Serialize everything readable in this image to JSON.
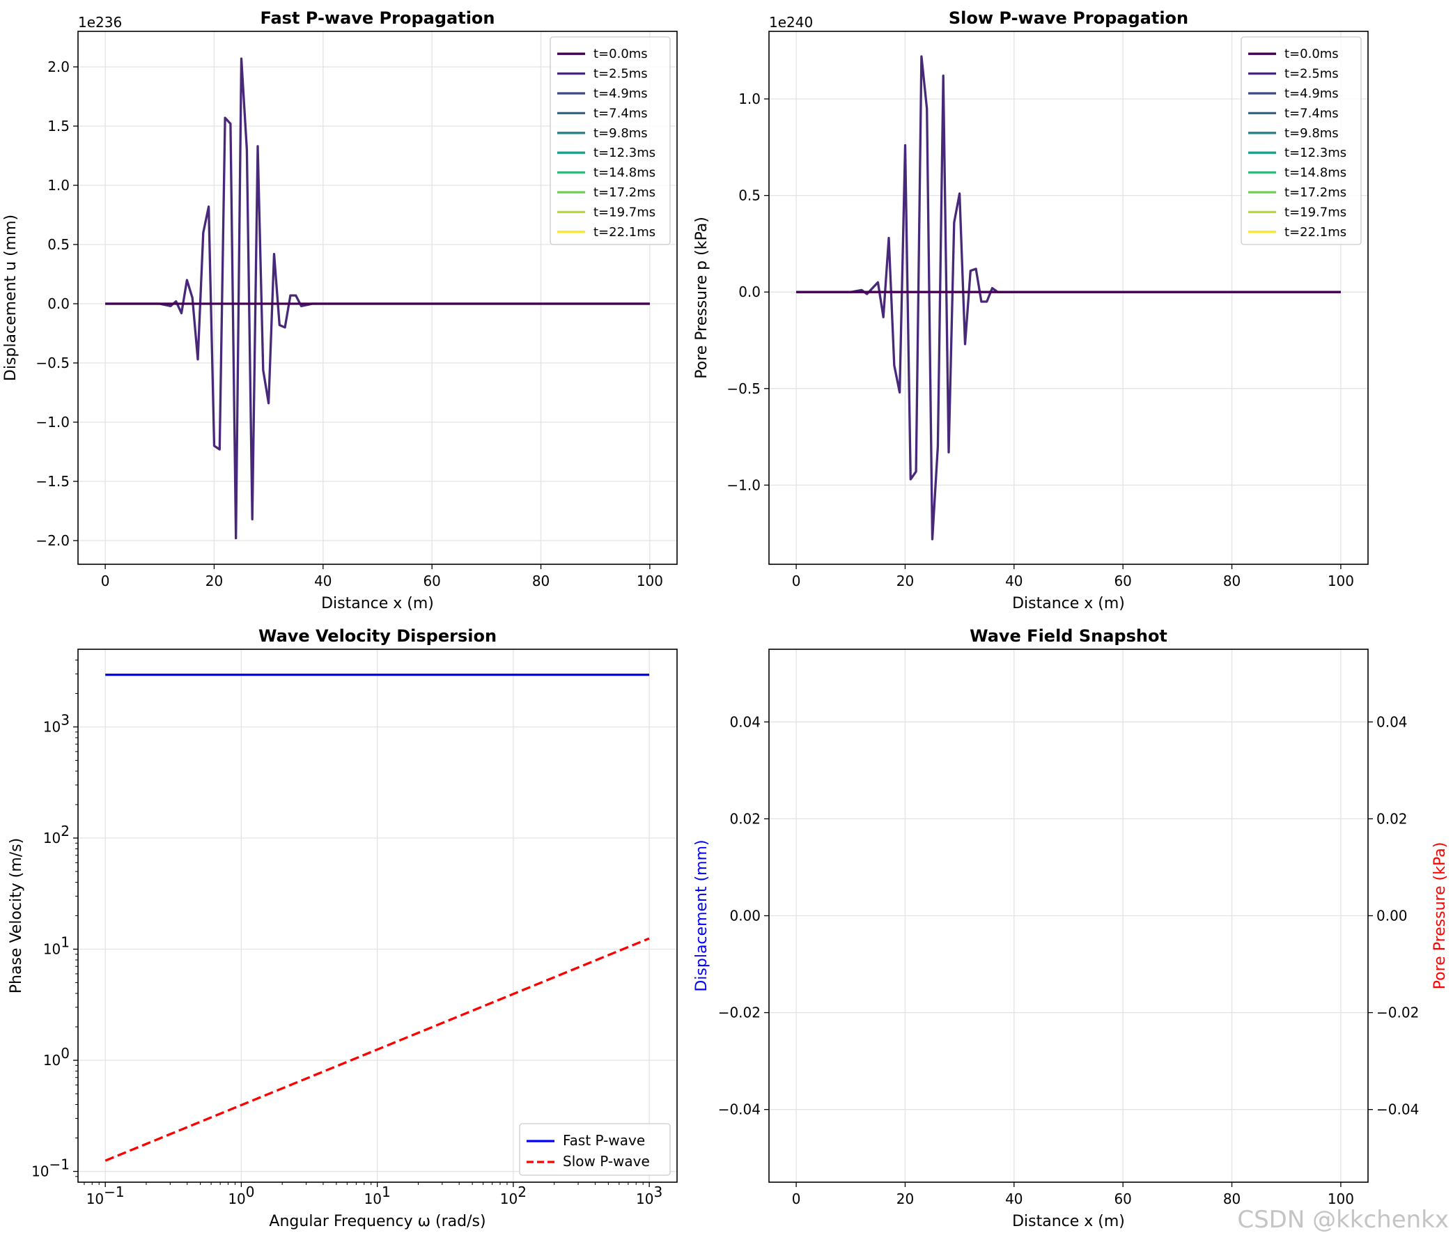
{
  "watermark": "CSDN @kkchenkx",
  "chart_data": [
    {
      "type": "line",
      "id": "fast",
      "title": "Fast P-wave Propagation",
      "xlabel": "Distance x (m)",
      "ylabel": "Displacement u (mm)",
      "offset_text": "1e236",
      "xlim": [
        -5,
        105
      ],
      "ylim": [
        -2.2,
        2.3
      ],
      "xticks": [
        0,
        20,
        40,
        60,
        80,
        100
      ],
      "xtick_labels": [
        "0",
        "20",
        "40",
        "60",
        "80",
        "100"
      ],
      "yticks": [
        -2.0,
        -1.5,
        -1.0,
        -0.5,
        0.0,
        0.5,
        1.0,
        1.5,
        2.0
      ],
      "ytick_labels": [
        "−2.0",
        "−1.5",
        "−1.0",
        "−0.5",
        "0.0",
        "0.5",
        "1.0",
        "1.5",
        "2.0"
      ],
      "grid": true,
      "legend_position": "top-right",
      "legend": [
        {
          "label": "t=0.0ms",
          "color": "#440154"
        },
        {
          "label": "t=2.5ms",
          "color": "#482878"
        },
        {
          "label": "t=4.9ms",
          "color": "#3e4989"
        },
        {
          "label": "t=7.4ms",
          "color": "#31688e"
        },
        {
          "label": "t=9.8ms",
          "color": "#26828e"
        },
        {
          "label": "t=12.3ms",
          "color": "#1f9e89"
        },
        {
          "label": "t=14.8ms",
          "color": "#35b779"
        },
        {
          "label": "t=17.2ms",
          "color": "#6ece58"
        },
        {
          "label": "t=19.7ms",
          "color": "#b5de2b"
        },
        {
          "label": "t=22.1ms",
          "color": "#fde725"
        }
      ],
      "series": [
        {
          "name": "t=2.5ms",
          "color": "#482878",
          "x": [
            0,
            10,
            12,
            13,
            14,
            15,
            16,
            17,
            18,
            19,
            20,
            21,
            22,
            23,
            24,
            25,
            26,
            27,
            28,
            29,
            30,
            31,
            32,
            33,
            34,
            35,
            36,
            37,
            38,
            100
          ],
          "y": [
            0,
            0,
            -0.02,
            0.02,
            -0.08,
            0.2,
            0.05,
            -0.47,
            0.6,
            0.82,
            -1.2,
            -1.23,
            1.57,
            1.52,
            -1.98,
            2.07,
            1.3,
            -1.82,
            1.33,
            -0.56,
            -0.84,
            0.42,
            -0.18,
            -0.2,
            0.07,
            0.07,
            -0.02,
            -0.01,
            0,
            0
          ]
        },
        {
          "name": "t=0.0ms",
          "color": "#440154",
          "x": [
            0,
            100
          ],
          "y": [
            0,
            0
          ]
        }
      ]
    },
    {
      "type": "line",
      "id": "slow",
      "title": "Slow P-wave Propagation",
      "xlabel": "Distance x (m)",
      "ylabel": "Pore Pressure p (kPa)",
      "offset_text": "1e240",
      "xlim": [
        -5,
        105
      ],
      "ylim": [
        -1.41,
        1.35
      ],
      "xticks": [
        0,
        20,
        40,
        60,
        80,
        100
      ],
      "xtick_labels": [
        "0",
        "20",
        "40",
        "60",
        "80",
        "100"
      ],
      "yticks": [
        -1.0,
        -0.5,
        0.0,
        0.5,
        1.0
      ],
      "ytick_labels": [
        "−1.0",
        "−0.5",
        "0.0",
        "0.5",
        "1.0"
      ],
      "grid": true,
      "legend_position": "top-right",
      "legend": [
        {
          "label": "t=0.0ms",
          "color": "#440154"
        },
        {
          "label": "t=2.5ms",
          "color": "#482878"
        },
        {
          "label": "t=4.9ms",
          "color": "#3e4989"
        },
        {
          "label": "t=7.4ms",
          "color": "#31688e"
        },
        {
          "label": "t=9.8ms",
          "color": "#26828e"
        },
        {
          "label": "t=12.3ms",
          "color": "#1f9e89"
        },
        {
          "label": "t=14.8ms",
          "color": "#35b779"
        },
        {
          "label": "t=17.2ms",
          "color": "#6ece58"
        },
        {
          "label": "t=19.7ms",
          "color": "#b5de2b"
        },
        {
          "label": "t=22.1ms",
          "color": "#fde725"
        }
      ],
      "series": [
        {
          "name": "t=2.5ms",
          "color": "#482878",
          "x": [
            0,
            10,
            12,
            13,
            14,
            15,
            16,
            17,
            18,
            19,
            20,
            21,
            22,
            23,
            24,
            25,
            26,
            27,
            28,
            29,
            30,
            31,
            32,
            33,
            34,
            35,
            36,
            37,
            38,
            100
          ],
          "y": [
            0,
            0,
            0.01,
            -0.01,
            0.02,
            0.05,
            -0.13,
            0.28,
            -0.38,
            -0.52,
            0.76,
            -0.97,
            -0.93,
            1.22,
            0.95,
            -1.28,
            -0.8,
            1.12,
            -0.83,
            0.36,
            0.51,
            -0.27,
            0.11,
            0.12,
            -0.05,
            -0.05,
            0.02,
            0.0,
            0,
            0
          ]
        },
        {
          "name": "t=0.0ms",
          "color": "#440154",
          "x": [
            0,
            100
          ],
          "y": [
            0,
            0
          ]
        }
      ]
    },
    {
      "type": "line",
      "id": "disp",
      "title": "Wave Velocity Dispersion",
      "xlabel": "Angular Frequency ω (rad/s)",
      "ylabel": "Phase Velocity (m/s)",
      "xscale": "log",
      "yscale": "log",
      "xlim": [
        0.063,
        1600
      ],
      "ylim": [
        0.08,
        5000
      ],
      "xticks": [
        0.1,
        1,
        10,
        100,
        1000
      ],
      "xtick_labels": [
        {
          "base": "10",
          "exp": "−1"
        },
        {
          "base": "10",
          "exp": "0"
        },
        {
          "base": "10",
          "exp": "1"
        },
        {
          "base": "10",
          "exp": "2"
        },
        {
          "base": "10",
          "exp": "3"
        }
      ],
      "yticks": [
        0.1,
        1,
        10,
        100,
        1000
      ],
      "ytick_labels": [
        {
          "base": "10",
          "exp": "−1"
        },
        {
          "base": "10",
          "exp": "0"
        },
        {
          "base": "10",
          "exp": "1"
        },
        {
          "base": "10",
          "exp": "2"
        },
        {
          "base": "10",
          "exp": "3"
        }
      ],
      "grid": true,
      "legend_position": "bottom-right",
      "legend": [
        {
          "label": "Fast P-wave",
          "color": "#0000ff",
          "dash": false
        },
        {
          "label": "Slow P-wave",
          "color": "#ff0000",
          "dash": true
        }
      ],
      "series": [
        {
          "name": "Fast P-wave",
          "color": "#0000ff",
          "dash": false,
          "x": [
            0.1,
            1000
          ],
          "y": [
            2950,
            2950
          ]
        },
        {
          "name": "Slow P-wave",
          "color": "#ff0000",
          "dash": true,
          "x": [
            0.1,
            1000
          ],
          "y": [
            0.125,
            12.5
          ]
        }
      ]
    },
    {
      "type": "line",
      "id": "snap",
      "title": "Wave Field Snapshot",
      "xlabel": "Distance x (m)",
      "ylabel": "Displacement (mm)",
      "ylabel_color": "#0000ff",
      "ylabel_right": "Pore Pressure (kPa)",
      "ylabel_right_color": "#ff0000",
      "xlim": [
        -5,
        105
      ],
      "ylim": [
        -0.055,
        0.055
      ],
      "xticks": [
        0,
        20,
        40,
        60,
        80,
        100
      ],
      "xtick_labels": [
        "0",
        "20",
        "40",
        "60",
        "80",
        "100"
      ],
      "yticks": [
        -0.04,
        -0.02,
        0.0,
        0.02,
        0.04
      ],
      "ytick_labels": [
        "−0.04",
        "−0.02",
        "0.00",
        "0.02",
        "0.04"
      ],
      "grid": true,
      "series": []
    }
  ]
}
